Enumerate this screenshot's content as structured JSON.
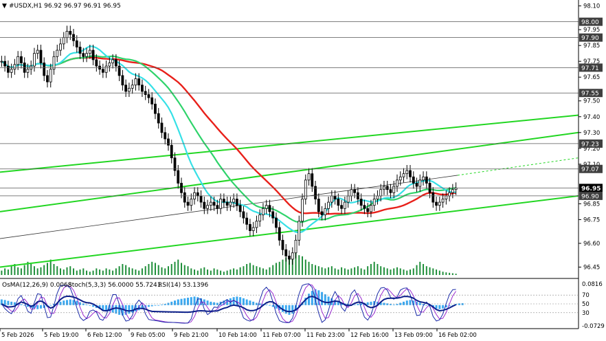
{
  "header": {
    "symbol_line": "#USDX,H1  96.92 96.97 96.91 96.95"
  },
  "indicator_header": {
    "osma": "OsMA(12,26,9) 0.0068",
    "stoch": "Stoch(5,3,3) 56.0000 55.7241",
    "rsi": "RSI(14) 53.1396"
  },
  "colors": {
    "background": "#ffffff",
    "candle": "#000000",
    "ma_red": "#e8201a",
    "ma_green": "#2ed36a",
    "ma_cyan": "#36e0e6",
    "channel_green": "#21d621",
    "volume": "#1f8f3a",
    "osma_bar": "#3aa8f0",
    "stoch_main": "#1a2aa8",
    "stoch_signal": "#9a2ad0",
    "rsi_line": "#0b1f8a",
    "tag_dark": "#3f3f3f",
    "tag_black": "#000000"
  },
  "chart_data": {
    "type": "candlestick",
    "price_axis": {
      "ylim": [
        96.4,
        98.12
      ],
      "ticks": [
        "98.10",
        "97.95",
        "97.85",
        "97.75",
        "97.65",
        "97.50",
        "97.40",
        "97.30",
        "97.20",
        "97.10",
        "96.85",
        "96.75",
        "96.60",
        "96.45"
      ]
    },
    "price_tags": [
      {
        "label": "98.00",
        "value": 98.0,
        "style": "dark"
      },
      {
        "label": "97.90",
        "value": 97.9,
        "style": "dark"
      },
      {
        "label": "97.71",
        "value": 97.71,
        "style": "dark"
      },
      {
        "label": "97.55",
        "value": 97.55,
        "style": "dark"
      },
      {
        "label": "97.23",
        "value": 97.23,
        "style": "dark"
      },
      {
        "label": "97.07",
        "value": 97.07,
        "style": "dark"
      },
      {
        "label": "96.95",
        "value": 96.95,
        "style": "black"
      },
      {
        "label": "96.90",
        "value": 96.9,
        "style": "dark"
      }
    ],
    "time_axis": [
      "5 Feb 2026",
      "5 Feb 19:00",
      "6 Feb 12:00",
      "9 Feb 05:00",
      "9 Feb 21:00",
      "10 Feb 14:00",
      "11 Feb 07:00",
      "11 Feb 23:00",
      "12 Feb 16:00",
      "13 Feb 09:00",
      "16 Feb 02:00"
    ],
    "closes": [
      97.75,
      97.72,
      97.68,
      97.7,
      97.73,
      97.78,
      97.74,
      97.68,
      97.7,
      97.72,
      97.8,
      97.82,
      97.74,
      97.66,
      97.62,
      97.7,
      97.78,
      97.82,
      97.86,
      97.9,
      97.94,
      97.92,
      97.88,
      97.84,
      97.8,
      97.78,
      97.8,
      97.82,
      97.76,
      97.72,
      97.7,
      97.68,
      97.72,
      97.74,
      97.76,
      97.72,
      97.66,
      97.6,
      97.56,
      97.58,
      97.6,
      97.64,
      97.6,
      97.56,
      97.54,
      97.52,
      97.48,
      97.42,
      97.36,
      97.3,
      97.26,
      97.22,
      97.14,
      97.06,
      96.98,
      96.92,
      96.86,
      96.84,
      96.88,
      96.92,
      96.9,
      96.86,
      96.82,
      96.84,
      96.86,
      96.84,
      96.82,
      96.88,
      96.86,
      96.84,
      96.86,
      96.88,
      96.84,
      96.8,
      96.76,
      96.72,
      96.68,
      96.7,
      96.74,
      96.78,
      96.82,
      96.84,
      96.8,
      96.76,
      96.7,
      96.62,
      96.56,
      96.52,
      96.5,
      96.54,
      96.62,
      96.74,
      96.88,
      97.0,
      97.04,
      96.96,
      96.88,
      96.8,
      96.78,
      96.82,
      96.86,
      96.9,
      96.88,
      96.84,
      96.82,
      96.86,
      96.9,
      96.94,
      96.92,
      96.88,
      96.84,
      96.82,
      96.8,
      96.84,
      96.88,
      96.9,
      96.94,
      96.96,
      96.94,
      96.92,
      96.96,
      97.0,
      97.02,
      97.04,
      97.06,
      97.02,
      96.98,
      96.96,
      97.0,
      97.02,
      96.98,
      96.92,
      96.86,
      96.84,
      96.86,
      96.88,
      96.9,
      96.92,
      96.94,
      96.95
    ],
    "osma": [
      0.02,
      0.018,
      0.015,
      0.012,
      0.01,
      0.006,
      0.003,
      -0.002,
      -0.006,
      -0.01,
      -0.012,
      -0.014,
      -0.012,
      -0.01,
      -0.006,
      -0.002,
      0.004,
      0.008,
      0.012,
      0.016,
      0.018,
      0.02,
      0.018,
      0.015,
      0.01,
      0.006,
      0.002,
      -0.002,
      -0.006,
      -0.01,
      -0.014,
      -0.018,
      -0.02,
      -0.022,
      -0.026,
      -0.03,
      -0.034,
      -0.036,
      -0.034,
      -0.03,
      -0.026,
      -0.022,
      -0.018,
      -0.014,
      -0.01,
      -0.006,
      -0.004,
      -0.002,
      0.0,
      0.002,
      0.004,
      0.008,
      0.012,
      0.016,
      0.02,
      0.022,
      0.024,
      0.026,
      0.028,
      0.03,
      0.028,
      0.024,
      0.02,
      0.016,
      0.012,
      0.01,
      0.008,
      0.012,
      0.016,
      0.02,
      0.024,
      0.028,
      0.03,
      0.028,
      0.024,
      0.02,
      0.016,
      0.012,
      0.008,
      0.006,
      0.004,
      0.002,
      -0.002,
      -0.006,
      -0.012,
      -0.018,
      -0.024,
      -0.03,
      -0.034,
      -0.03,
      -0.02,
      -0.006,
      0.01,
      0.026,
      0.04,
      0.05,
      0.056,
      0.052,
      0.046,
      0.038,
      0.03,
      0.024,
      0.018,
      0.012,
      0.008,
      0.006,
      0.004,
      0.002,
      0.002,
      0.004,
      0.006,
      0.008,
      0.01,
      0.012,
      0.014,
      0.012,
      0.01,
      0.008,
      0.006,
      0.004,
      0.002,
      0.004,
      0.008,
      0.012,
      0.016,
      0.018,
      0.016,
      0.012,
      0.008,
      0.004,
      0.0,
      -0.004,
      -0.008,
      -0.012,
      -0.014,
      -0.012,
      -0.008,
      -0.004,
      0.0,
      0.004,
      0.006,
      0.0068
    ],
    "volume": [
      0.2,
      0.3,
      0.25,
      0.4,
      0.5,
      0.35,
      0.3,
      0.45,
      0.6,
      0.5,
      0.4,
      0.3,
      0.35,
      0.45,
      0.55,
      0.7,
      0.5,
      0.4,
      0.3,
      0.25,
      0.35,
      0.4,
      0.3,
      0.2,
      0.25,
      0.3,
      0.2,
      0.15,
      0.2,
      0.3,
      0.25,
      0.2,
      0.3,
      0.25,
      0.2,
      0.3,
      0.4,
      0.5,
      0.45,
      0.35,
      0.3,
      0.25,
      0.2,
      0.3,
      0.4,
      0.5,
      0.6,
      0.55,
      0.45,
      0.35,
      0.3,
      0.4,
      0.5,
      0.6,
      0.7,
      0.55,
      0.45,
      0.4,
      0.3,
      0.25,
      0.2,
      0.3,
      0.35,
      0.25,
      0.2,
      0.3,
      0.25,
      0.2,
      0.15,
      0.2,
      0.25,
      0.3,
      0.25,
      0.35,
      0.4,
      0.5,
      0.55,
      0.45,
      0.4,
      0.35,
      0.3,
      0.25,
      0.35,
      0.45,
      0.55,
      0.6,
      0.7,
      0.8,
      0.75,
      0.9,
      1.0,
      0.9,
      0.85,
      0.7,
      0.6,
      0.5,
      0.45,
      0.4,
      0.35,
      0.3,
      0.35,
      0.4,
      0.3,
      0.25,
      0.35,
      0.3,
      0.25,
      0.3,
      0.35,
      0.4,
      0.3,
      0.25,
      0.4,
      0.5,
      0.6,
      0.5,
      0.4,
      0.35,
      0.3,
      0.25,
      0.3,
      0.35,
      0.3,
      0.25,
      0.2,
      0.25,
      0.3,
      0.45,
      0.6,
      0.5,
      0.4,
      0.35,
      0.3,
      0.25,
      0.2,
      0.15,
      0.12,
      0.1,
      0.08,
      0.06
    ],
    "indicator_levels": [
      {
        "label": "0.0816"
      },
      {
        "label": "70"
      },
      {
        "label": "50"
      },
      {
        "label": "30"
      },
      {
        "label": "-0.0729"
      }
    ]
  }
}
